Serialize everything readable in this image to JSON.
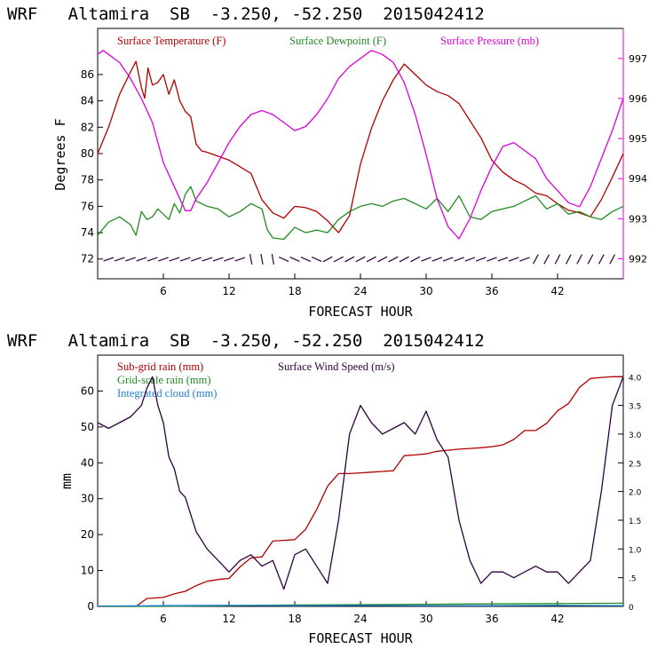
{
  "colors": {
    "temperature": "#b00000",
    "dewpoint": "#228b22",
    "pressure": "#dd00dd",
    "wind": "#300040",
    "subgrid": "#b00000",
    "gridscale": "#228b22",
    "cloud": "#1e7fd0"
  },
  "chart_data": [
    {
      "type": "line",
      "title": "WRF   Altamira  SB  -3.250, -52.250  2015042412",
      "xlabel": "FORECAST HOUR",
      "ylabel": "Degrees F",
      "y2label": "",
      "xlim": [
        0,
        48
      ],
      "ylim": [
        70.5,
        89.5
      ],
      "y2lim": [
        991.5,
        997.75
      ],
      "x_ticks": [
        6,
        12,
        18,
        24,
        30,
        36,
        42
      ],
      "x_tick_labels": [
        "6",
        "12",
        "18",
        "24",
        "30",
        "36",
        "42"
      ],
      "y_ticks": [
        72,
        74,
        76,
        78,
        80,
        82,
        84,
        86
      ],
      "y_tick_labels": [
        "72",
        "74",
        "76",
        "78",
        "80",
        "82",
        "84",
        "86"
      ],
      "y2_ticks": [
        992,
        993,
        994,
        995,
        996,
        997
      ],
      "y2_tick_labels": [
        "992",
        "993",
        "994",
        "995",
        "996",
        "997"
      ],
      "legend": [
        "Surface Temperature (F)",
        "Surface Dewpoint (F)",
        "Surface Pressure (mb)"
      ],
      "series": [
        {
          "name": "Surface Temperature (F)",
          "axis": "left",
          "x": [
            0,
            1,
            2,
            3,
            3.5,
            4,
            4.3,
            4.6,
            5,
            5.5,
            6,
            6.5,
            7,
            7.5,
            8,
            8.5,
            9,
            9.5,
            10,
            11,
            12,
            13,
            14,
            14.5,
            15,
            16,
            17,
            18,
            19,
            20,
            21,
            22,
            23,
            24,
            25,
            26,
            27,
            28,
            29,
            30,
            31,
            32,
            33,
            34,
            35,
            36,
            37,
            38,
            39,
            40,
            41,
            42,
            43,
            44,
            45,
            46,
            47,
            48
          ],
          "y": [
            80.0,
            82.0,
            84.5,
            86.2,
            87.0,
            85.0,
            84.2,
            86.5,
            85.2,
            85.4,
            86.0,
            84.5,
            85.6,
            84.0,
            83.2,
            82.8,
            80.7,
            80.2,
            80.1,
            79.8,
            79.5,
            79.0,
            78.5,
            77.5,
            76.5,
            75.5,
            75.1,
            76.0,
            75.9,
            75.6,
            74.9,
            74.0,
            75.3,
            79.2,
            81.9,
            84.0,
            85.6,
            86.8,
            86.0,
            85.2,
            84.7,
            84.4,
            83.8,
            82.5,
            81.2,
            79.5,
            78.6,
            78.0,
            77.6,
            77.0,
            76.8,
            76.2,
            75.7,
            75.5,
            75.2,
            76.5,
            78.2,
            80.0
          ]
        },
        {
          "name": "Surface Dewpoint (F)",
          "axis": "left",
          "x": [
            0,
            1,
            2,
            3,
            3.5,
            4,
            4.5,
            5,
            5.5,
            6,
            6.5,
            7,
            7.5,
            8,
            8.5,
            9,
            9.5,
            10,
            11,
            12,
            13,
            14,
            15,
            15.5,
            16,
            17,
            18,
            19,
            20,
            21,
            22,
            23,
            24,
            25,
            26,
            27,
            28,
            29,
            30,
            31,
            32,
            33,
            34,
            35,
            36,
            37,
            38,
            39,
            40,
            41,
            42,
            43,
            44,
            45,
            46,
            47,
            48
          ],
          "y": [
            73.8,
            74.8,
            75.2,
            74.6,
            73.8,
            75.6,
            75.0,
            75.2,
            75.8,
            75.4,
            75.0,
            76.2,
            75.5,
            76.9,
            77.5,
            76.4,
            76.2,
            76.0,
            75.8,
            75.2,
            75.6,
            76.2,
            75.8,
            74.2,
            73.6,
            73.5,
            74.4,
            74.0,
            74.2,
            74.0,
            75.0,
            75.6,
            76.0,
            76.2,
            76.0,
            76.4,
            76.6,
            76.2,
            75.8,
            76.6,
            75.6,
            76.8,
            75.2,
            75.0,
            75.6,
            75.8,
            76.0,
            76.4,
            76.8,
            75.8,
            76.2,
            75.4,
            75.6,
            75.2,
            75.0,
            75.6,
            76.0
          ]
        },
        {
          "name": "Surface Pressure (mb)",
          "axis": "right",
          "x": [
            0,
            0.5,
            1,
            2,
            3,
            4,
            5,
            6,
            7,
            8,
            8.5,
            9,
            10,
            11,
            12,
            13,
            14,
            15,
            16,
            17,
            18,
            19,
            20,
            21,
            22,
            23,
            24,
            25,
            26,
            27,
            28,
            29,
            30,
            31,
            32,
            33,
            34,
            35,
            36,
            37,
            38,
            39,
            40,
            41,
            42,
            43,
            44,
            45,
            46,
            47,
            48
          ],
          "y": [
            997.1,
            997.2,
            997.1,
            996.9,
            996.5,
            996.0,
            995.4,
            994.4,
            993.8,
            993.2,
            993.2,
            993.5,
            993.9,
            994.4,
            994.9,
            995.3,
            995.6,
            995.7,
            995.6,
            995.4,
            995.2,
            995.3,
            995.6,
            996.0,
            996.5,
            996.8,
            997.0,
            997.2,
            997.1,
            996.9,
            996.4,
            995.6,
            994.6,
            993.5,
            992.8,
            992.5,
            993.0,
            993.7,
            994.3,
            994.8,
            994.9,
            994.7,
            994.5,
            994.0,
            993.7,
            993.4,
            993.3,
            993.8,
            994.5,
            995.2,
            996.0
          ]
        }
      ],
      "wind_barbs_hours": [
        1,
        2,
        3,
        4,
        5,
        6,
        7,
        8,
        9,
        10,
        11,
        12,
        13,
        14,
        15,
        16,
        17,
        18,
        19,
        20,
        21,
        22,
        23,
        24,
        25,
        26,
        27,
        28,
        29,
        30,
        31,
        32,
        33,
        34,
        35,
        36,
        37,
        38,
        39,
        40,
        41,
        42,
        43,
        44,
        45,
        46,
        47
      ]
    },
    {
      "type": "line",
      "title": "WRF   Altamira  SB  -3.250, -52.250  2015042412",
      "xlabel": "FORECAST HOUR",
      "ylabel": "mm",
      "xlim": [
        0,
        48
      ],
      "ylim": [
        0,
        70
      ],
      "y2lim": [
        0,
        4.375
      ],
      "x_ticks": [
        6,
        12,
        18,
        24,
        30,
        36,
        42
      ],
      "x_tick_labels": [
        "6",
        "12",
        "18",
        "24",
        "30",
        "36",
        "42"
      ],
      "y_ticks": [
        0,
        10,
        20,
        30,
        40,
        50,
        60
      ],
      "y_tick_labels": [
        "0",
        "10",
        "20",
        "30",
        "40",
        "50",
        "60"
      ],
      "y2_ticks": [
        0,
        0.5,
        1.0,
        1.5,
        2.0,
        2.5,
        3.0,
        3.5,
        4.0
      ],
      "y2_tick_labels": [
        "0",
        ".5",
        "1.0",
        "1.5",
        "2.0",
        "2.5",
        "3.0",
        "3.5",
        "4.0"
      ],
      "legend": [
        "Sub-grid rain (mm)",
        "Surface Wind Speed (m/s)",
        "Grid-scale rain (mm)",
        "Integrated cloud (mm)"
      ],
      "series": [
        {
          "name": "Sub-grid rain (mm)",
          "axis": "left",
          "x": [
            0,
            3.5,
            4.5,
            6,
            7,
            8,
            9,
            10,
            11,
            12,
            13,
            14,
            15,
            16,
            17,
            18,
            19,
            20,
            21,
            22,
            23,
            24,
            25,
            26,
            27,
            28,
            29,
            30,
            31,
            32,
            33,
            34,
            35,
            36,
            37,
            38,
            39,
            40,
            41,
            42,
            43,
            44,
            45,
            46,
            47,
            48
          ],
          "y": [
            0,
            0,
            2.2,
            2.5,
            3.5,
            4.2,
            5.8,
            7.0,
            7.5,
            7.8,
            11.0,
            13.5,
            13.8,
            18.2,
            18.4,
            18.6,
            21.5,
            27.0,
            33.5,
            37.0,
            37.0,
            37.2,
            37.4,
            37.6,
            37.8,
            42.0,
            42.2,
            42.5,
            43.2,
            43.5,
            43.8,
            44.0,
            44.2,
            44.5,
            45.0,
            46.5,
            49.0,
            49.0,
            51.0,
            54.5,
            56.5,
            61.0,
            63.5,
            63.8,
            64.0,
            64.0
          ]
        },
        {
          "name": "Surface Wind Speed (m/s)",
          "axis": "right",
          "x": [
            0,
            1,
            2,
            3,
            3.5,
            4,
            4.5,
            5,
            5.5,
            6,
            6.5,
            7,
            7.5,
            8,
            8.5,
            9,
            10,
            11,
            12,
            13,
            14,
            15,
            16,
            17,
            18,
            19,
            20,
            21,
            22,
            23,
            24,
            25,
            26,
            27,
            28,
            29,
            30,
            31,
            32,
            33,
            34,
            35,
            36,
            37,
            38,
            39,
            40,
            41,
            42,
            43,
            44,
            45,
            46,
            47,
            48
          ],
          "y": [
            3.2,
            3.1,
            3.2,
            3.3,
            3.4,
            3.5,
            3.8,
            4.0,
            3.5,
            3.2,
            2.6,
            2.4,
            2.0,
            1.9,
            1.6,
            1.3,
            1.0,
            0.8,
            0.6,
            0.8,
            0.9,
            0.7,
            0.8,
            0.3,
            0.9,
            1.0,
            0.7,
            0.4,
            1.5,
            3.0,
            3.5,
            3.2,
            3.0,
            3.1,
            3.2,
            3.0,
            3.4,
            2.9,
            2.6,
            1.5,
            0.8,
            0.4,
            0.6,
            0.6,
            0.5,
            0.6,
            0.7,
            0.6,
            0.6,
            0.4,
            0.6,
            0.8,
            2.0,
            3.5,
            4.0
          ]
        },
        {
          "name": "Grid-scale rain (mm)",
          "axis": "left",
          "x": [
            0,
            6,
            12,
            18,
            24,
            30,
            36,
            42,
            48
          ],
          "y": [
            0,
            0,
            0.2,
            0.4,
            0.5,
            0.6,
            0.7,
            0.8,
            0.9
          ]
        },
        {
          "name": "Integrated cloud (mm)",
          "axis": "left",
          "x": [
            0,
            6,
            12,
            18,
            24,
            30,
            36,
            42,
            48
          ],
          "y": [
            0.1,
            0.2,
            0.3,
            0.2,
            0.3,
            0.2,
            0.2,
            0.3,
            0.2
          ]
        }
      ]
    }
  ]
}
